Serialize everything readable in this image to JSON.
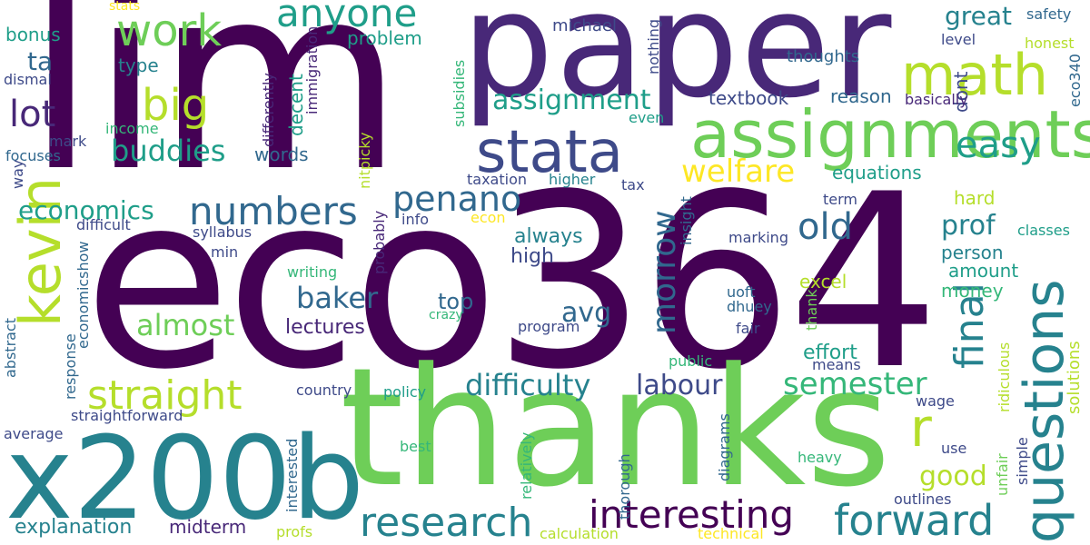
{
  "palette": {
    "p1": "#440154",
    "p2": "#482878",
    "p3": "#3e4a89",
    "p4": "#31688e",
    "p5": "#26828e",
    "p6": "#1f9e89",
    "p7": "#35b779",
    "p8": "#6ece58",
    "p9": "#b5de2b",
    "p10": "#fde725"
  },
  "words": [
    {
      "id": "w0",
      "text": "lim"
    },
    {
      "id": "w1",
      "text": "paper"
    },
    {
      "id": "w2",
      "text": "eco364"
    },
    {
      "id": "w3",
      "text": "thanks"
    },
    {
      "id": "w4",
      "text": "x200b"
    },
    {
      "id": "w5",
      "text": "assignments"
    },
    {
      "id": "w6",
      "text": "stata"
    },
    {
      "id": "w7",
      "text": "math"
    },
    {
      "id": "w8",
      "text": "kevin"
    },
    {
      "id": "w9",
      "text": "questions"
    },
    {
      "id": "w10",
      "text": "forward"
    },
    {
      "id": "w11",
      "text": "research"
    },
    {
      "id": "w12",
      "text": "straight"
    },
    {
      "id": "w13",
      "text": "work"
    },
    {
      "id": "w14",
      "text": "anyone"
    },
    {
      "id": "w15",
      "text": "interesting"
    },
    {
      "id": "w16",
      "text": "final"
    },
    {
      "id": "w17",
      "text": "numbers"
    },
    {
      "id": "w18",
      "text": "penano"
    },
    {
      "id": "w19",
      "text": "welfare"
    },
    {
      "id": "w20",
      "text": "easy"
    },
    {
      "id": "w21",
      "text": "semester"
    },
    {
      "id": "w22",
      "text": "difficulty"
    },
    {
      "id": "w23",
      "text": "morrow"
    },
    {
      "id": "w24",
      "text": "big"
    },
    {
      "id": "w25",
      "text": "lot"
    },
    {
      "id": "w26",
      "text": "assignment"
    },
    {
      "id": "w27",
      "text": "old"
    },
    {
      "id": "w28",
      "text": "r"
    },
    {
      "id": "w29",
      "text": "buddies"
    },
    {
      "id": "w30",
      "text": "baker"
    },
    {
      "id": "w31",
      "text": "almost"
    },
    {
      "id": "w32",
      "text": "labour"
    },
    {
      "id": "w33",
      "text": "great"
    },
    {
      "id": "w34",
      "text": "prof"
    },
    {
      "id": "w35",
      "text": "economics"
    },
    {
      "id": "w36",
      "text": "good"
    },
    {
      "id": "w37",
      "text": "avg"
    },
    {
      "id": "w38",
      "text": "ta"
    },
    {
      "id": "w39",
      "text": "top"
    },
    {
      "id": "w40",
      "text": "always"
    },
    {
      "id": "w41",
      "text": "high"
    },
    {
      "id": "w42",
      "text": "lectures"
    },
    {
      "id": "w43",
      "text": "explanation"
    },
    {
      "id": "w44",
      "text": "midterm"
    },
    {
      "id": "w45",
      "text": "problem"
    },
    {
      "id": "w46",
      "text": "type"
    },
    {
      "id": "w47",
      "text": "bonus"
    },
    {
      "id": "w48",
      "text": "textbook"
    },
    {
      "id": "w49",
      "text": "reason"
    },
    {
      "id": "w50",
      "text": "equations"
    },
    {
      "id": "w51",
      "text": "hard"
    },
    {
      "id": "w52",
      "text": "person"
    },
    {
      "id": "w53",
      "text": "amount"
    },
    {
      "id": "w54",
      "text": "money"
    },
    {
      "id": "w55",
      "text": "effort"
    },
    {
      "id": "w56",
      "text": "excel"
    },
    {
      "id": "w57",
      "text": "decent"
    },
    {
      "id": "w58",
      "text": "words"
    },
    {
      "id": "w59",
      "text": "dont"
    },
    {
      "id": "w60",
      "text": "michael"
    },
    {
      "id": "w61",
      "text": "thoughts"
    },
    {
      "id": "w62",
      "text": "level"
    },
    {
      "id": "w63",
      "text": "safety"
    },
    {
      "id": "w64",
      "text": "honest"
    },
    {
      "id": "w65",
      "text": "eco340"
    },
    {
      "id": "w66",
      "text": "basically"
    },
    {
      "id": "w67",
      "text": "dismal"
    },
    {
      "id": "w68",
      "text": "income"
    },
    {
      "id": "w69",
      "text": "mark"
    },
    {
      "id": "w70",
      "text": "focuses"
    },
    {
      "id": "w71",
      "text": "way"
    },
    {
      "id": "w72",
      "text": "stats"
    },
    {
      "id": "w73",
      "text": "nothing"
    },
    {
      "id": "w74",
      "text": "even"
    },
    {
      "id": "w75",
      "text": "immigration"
    },
    {
      "id": "w76",
      "text": "differently"
    },
    {
      "id": "w77",
      "text": "subsidies"
    },
    {
      "id": "w78",
      "text": "nitpicky"
    },
    {
      "id": "w79",
      "text": "taxation"
    },
    {
      "id": "w80",
      "text": "higher"
    },
    {
      "id": "w81",
      "text": "tax"
    },
    {
      "id": "w82",
      "text": "term"
    },
    {
      "id": "w83",
      "text": "classes"
    },
    {
      "id": "w84",
      "text": "difficult"
    },
    {
      "id": "w85",
      "text": "info"
    },
    {
      "id": "w86",
      "text": "econ"
    },
    {
      "id": "w87",
      "text": "insight"
    },
    {
      "id": "w88",
      "text": "syllabus"
    },
    {
      "id": "w89",
      "text": "min"
    },
    {
      "id": "w90",
      "text": "economicshow"
    },
    {
      "id": "w91",
      "text": "probably"
    },
    {
      "id": "w92",
      "text": "writing"
    },
    {
      "id": "w93",
      "text": "marking"
    },
    {
      "id": "w94",
      "text": "crazy"
    },
    {
      "id": "w95",
      "text": "uoft"
    },
    {
      "id": "w96",
      "text": "dhuey"
    },
    {
      "id": "w97",
      "text": "program"
    },
    {
      "id": "w98",
      "text": "fair"
    },
    {
      "id": "w99",
      "text": "thank"
    },
    {
      "id": "w100",
      "text": "ridiculous"
    },
    {
      "id": "w101",
      "text": "solutions"
    },
    {
      "id": "w102",
      "text": "public"
    },
    {
      "id": "w103",
      "text": "means"
    },
    {
      "id": "w104",
      "text": "abstract"
    },
    {
      "id": "w105",
      "text": "response"
    },
    {
      "id": "w106",
      "text": "country"
    },
    {
      "id": "w107",
      "text": "policy"
    },
    {
      "id": "w108",
      "text": "wage"
    },
    {
      "id": "w109",
      "text": "straightforward"
    },
    {
      "id": "w110",
      "text": "average"
    },
    {
      "id": "w111",
      "text": "interested"
    },
    {
      "id": "w112",
      "text": "best"
    },
    {
      "id": "w113",
      "text": "relatively"
    },
    {
      "id": "w114",
      "text": "thorough"
    },
    {
      "id": "w115",
      "text": "diagrams"
    },
    {
      "id": "w116",
      "text": "unfair"
    },
    {
      "id": "w117",
      "text": "simple"
    },
    {
      "id": "w118",
      "text": "use"
    },
    {
      "id": "w119",
      "text": "heavy"
    },
    {
      "id": "w120",
      "text": "outlines"
    },
    {
      "id": "w121",
      "text": "profs"
    },
    {
      "id": "w122",
      "text": "calculation"
    },
    {
      "id": "w123",
      "text": "technical"
    }
  ]
}
